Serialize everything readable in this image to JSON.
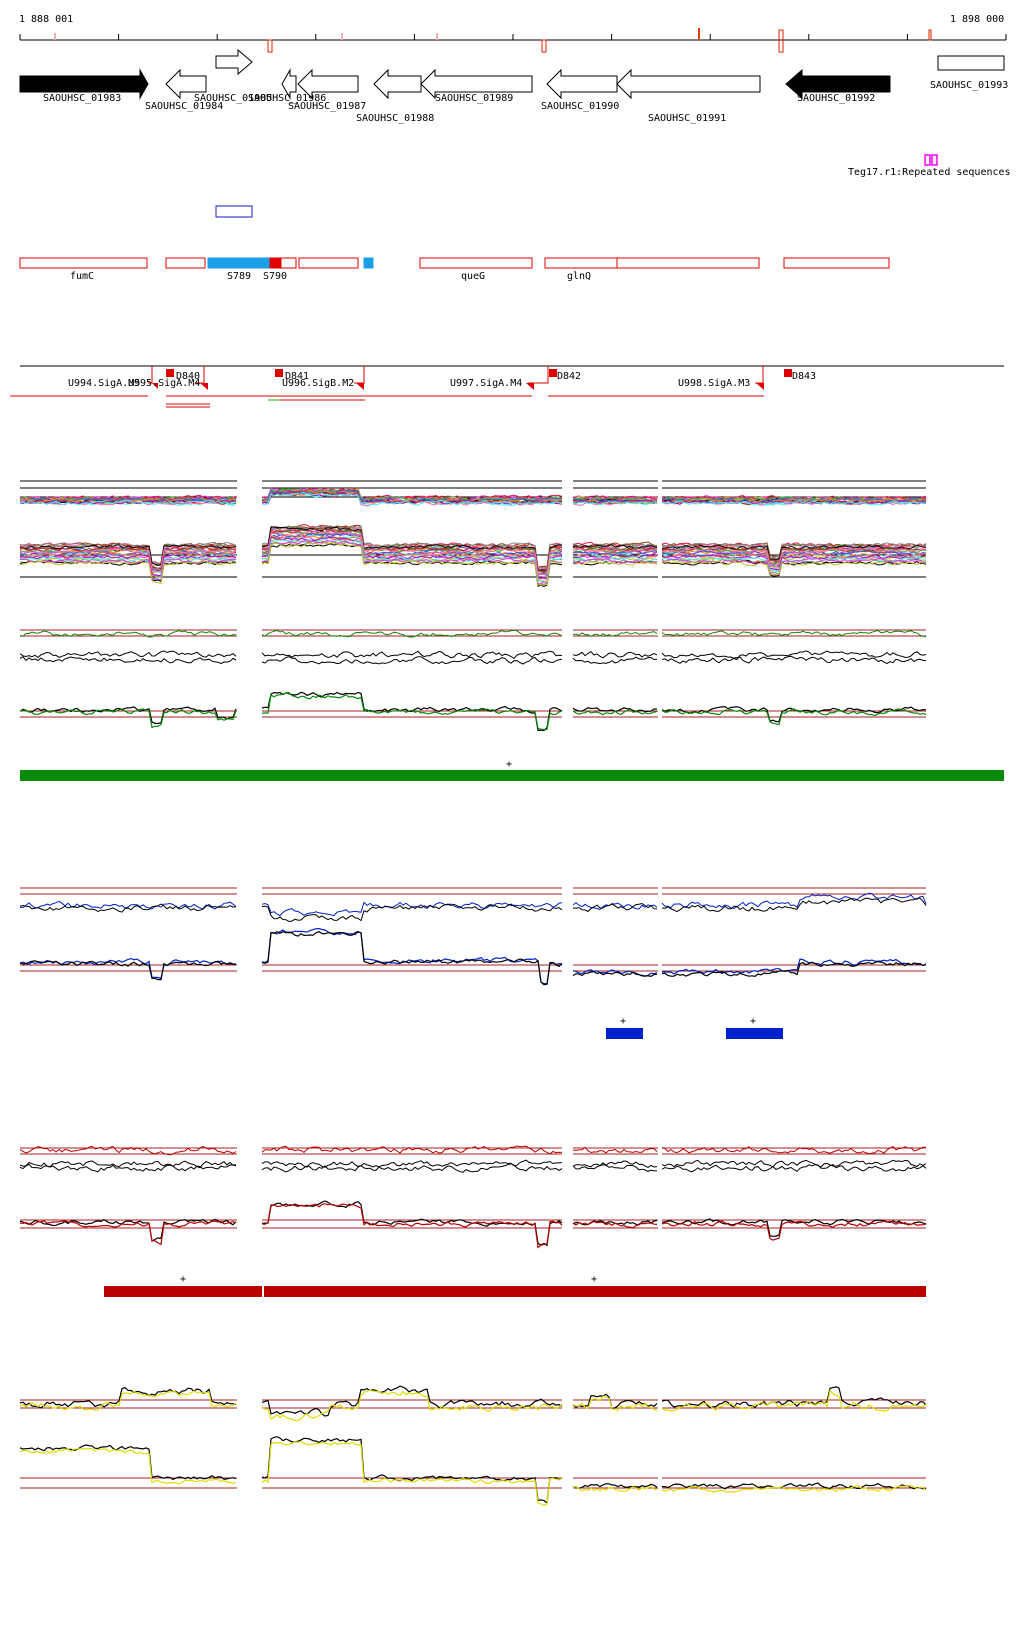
{
  "ruler": {
    "start_label": "1 888 001",
    "end_label": "1 898 000"
  },
  "genes": [
    {
      "name": "SAOUHSC_01983",
      "strand": "+",
      "filled": true
    },
    {
      "name": "SAOUHSC_01984",
      "strand": "-",
      "filled": false
    },
    {
      "name": "SAOUHSC_01985",
      "strand": "+",
      "filled": false
    },
    {
      "name": "SAOUHSC_01986",
      "strand": "-",
      "filled": false
    },
    {
      "name": "SAOUHSC_01987",
      "strand": "-",
      "filled": false
    },
    {
      "name": "SAOUHSC_01988",
      "strand": "-",
      "filled": false
    },
    {
      "name": "SAOUHSC_01989",
      "strand": "-",
      "filled": false
    },
    {
      "name": "SAOUHSC_01990",
      "strand": "-",
      "filled": false
    },
    {
      "name": "SAOUHSC_01991",
      "strand": "-",
      "filled": false
    },
    {
      "name": "SAOUHSC_01992",
      "strand": "-",
      "filled": true
    },
    {
      "name": "SAOUHSC_01993",
      "strand": "+",
      "filled": false
    }
  ],
  "repeat_label": "Teg17.r1:Repeated sequences",
  "operon_labels": [
    "fumC",
    "S789",
    "S790",
    "queG",
    "glnQ"
  ],
  "promoters": {
    "labels": [
      "U994.SigA.M5",
      "U995.SigA.M4",
      "U996.SigB.M2",
      "U997.SigA.M4",
      "U998.SigA.M3"
    ],
    "terminators": [
      "D840",
      "D841",
      "D842",
      "D843"
    ]
  },
  "strand_markers": {
    "plus": "+"
  },
  "colors": {
    "gene_outline": "#000000",
    "repeat": "#ff00ff",
    "operon_outline": "#dd0000",
    "segment_blue": "#1a9ee6",
    "segment_red": "#e00000",
    "panel_green": "#0a8a0a",
    "panel_blue": "#0022cc",
    "panel_red": "#bb0000",
    "panel_yellow": "#dddd00",
    "threshold": "#aa2222"
  }
}
